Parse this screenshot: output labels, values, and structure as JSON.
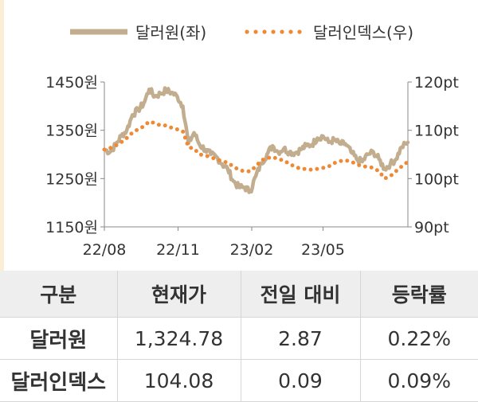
{
  "chart_data": {
    "type": "line",
    "x_ticks": [
      "22/08",
      "22/11",
      "23/02",
      "23/05"
    ],
    "y_left": {
      "ticks": [
        "1450원",
        "1350원",
        "1250원",
        "1150원"
      ],
      "range": [
        1150,
        1450
      ]
    },
    "y_right": {
      "ticks": [
        "120pt",
        "110pt",
        "100pt",
        "90pt"
      ],
      "range": [
        90,
        120
      ]
    },
    "x_range": [
      "2022-08-01",
      "2023-08-15"
    ],
    "series": [
      {
        "name": "달러원(좌)",
        "axis": "left",
        "color": "#c2ad8e",
        "style": "solid",
        "points": [
          [
            "2022-08-01",
            1310
          ],
          [
            "2022-08-08",
            1305
          ],
          [
            "2022-08-15",
            1320
          ],
          [
            "2022-08-22",
            1338
          ],
          [
            "2022-08-29",
            1350
          ],
          [
            "2022-09-05",
            1382
          ],
          [
            "2022-09-12",
            1392
          ],
          [
            "2022-09-19",
            1405
          ],
          [
            "2022-09-26",
            1435
          ],
          [
            "2022-10-03",
            1420
          ],
          [
            "2022-10-10",
            1426
          ],
          [
            "2022-10-17",
            1433
          ],
          [
            "2022-10-24",
            1428
          ],
          [
            "2022-10-31",
            1420
          ],
          [
            "2022-11-07",
            1400
          ],
          [
            "2022-11-14",
            1323
          ],
          [
            "2022-11-21",
            1345
          ],
          [
            "2022-11-28",
            1320
          ],
          [
            "2022-12-05",
            1310
          ],
          [
            "2022-12-12",
            1300
          ],
          [
            "2022-12-19",
            1295
          ],
          [
            "2022-12-26",
            1280
          ],
          [
            "2023-01-02",
            1270
          ],
          [
            "2023-01-09",
            1245
          ],
          [
            "2023-01-16",
            1232
          ],
          [
            "2023-01-23",
            1232
          ],
          [
            "2023-01-30",
            1223
          ],
          [
            "2023-02-06",
            1255
          ],
          [
            "2023-02-13",
            1282
          ],
          [
            "2023-02-20",
            1300
          ],
          [
            "2023-02-27",
            1318
          ],
          [
            "2023-03-06",
            1305
          ],
          [
            "2023-03-13",
            1312
          ],
          [
            "2023-03-20",
            1305
          ],
          [
            "2023-03-27",
            1303
          ],
          [
            "2023-04-03",
            1310
          ],
          [
            "2023-04-10",
            1318
          ],
          [
            "2023-04-17",
            1320
          ],
          [
            "2023-04-24",
            1334
          ],
          [
            "2023-05-01",
            1338
          ],
          [
            "2023-05-08",
            1325
          ],
          [
            "2023-05-15",
            1330
          ],
          [
            "2023-05-22",
            1322
          ],
          [
            "2023-05-29",
            1322
          ],
          [
            "2023-06-05",
            1305
          ],
          [
            "2023-06-12",
            1290
          ],
          [
            "2023-06-19",
            1285
          ],
          [
            "2023-06-26",
            1300
          ],
          [
            "2023-07-03",
            1305
          ],
          [
            "2023-07-10",
            1290
          ],
          [
            "2023-07-17",
            1270
          ],
          [
            "2023-07-24",
            1280
          ],
          [
            "2023-07-31",
            1290
          ],
          [
            "2023-08-07",
            1315
          ],
          [
            "2023-08-15",
            1325
          ]
        ]
      },
      {
        "name": "달러인덱스(우)",
        "axis": "right",
        "color": "#ee8a35",
        "style": "dotted",
        "points": [
          [
            "2022-08-01",
            106.0
          ],
          [
            "2022-08-08",
            106.3
          ],
          [
            "2022-08-15",
            106.8
          ],
          [
            "2022-08-22",
            107.5
          ],
          [
            "2022-08-29",
            108.4
          ],
          [
            "2022-09-05",
            109.5
          ],
          [
            "2022-09-12",
            110.2
          ],
          [
            "2022-09-19",
            110.8
          ],
          [
            "2022-09-26",
            111.8
          ],
          [
            "2022-10-03",
            111.5
          ],
          [
            "2022-10-10",
            111.0
          ],
          [
            "2022-10-17",
            111.0
          ],
          [
            "2022-10-24",
            110.5
          ],
          [
            "2022-10-31",
            110.2
          ],
          [
            "2022-11-07",
            109.8
          ],
          [
            "2022-11-14",
            106.5
          ],
          [
            "2022-11-21",
            106.2
          ],
          [
            "2022-11-28",
            105.0
          ],
          [
            "2022-12-05",
            104.8
          ],
          [
            "2022-12-12",
            104.4
          ],
          [
            "2022-12-19",
            104.0
          ],
          [
            "2022-12-26",
            103.6
          ],
          [
            "2023-01-02",
            103.3
          ],
          [
            "2023-01-09",
            102.5
          ],
          [
            "2023-01-16",
            101.8
          ],
          [
            "2023-01-23",
            101.5
          ],
          [
            "2023-01-30",
            101.5
          ],
          [
            "2023-02-06",
            102.5
          ],
          [
            "2023-02-13",
            103.8
          ],
          [
            "2023-02-20",
            104.2
          ],
          [
            "2023-02-27",
            104.5
          ],
          [
            "2023-03-06",
            104.0
          ],
          [
            "2023-03-13",
            103.8
          ],
          [
            "2023-03-20",
            103.0
          ],
          [
            "2023-03-27",
            102.5
          ],
          [
            "2023-04-03",
            102.0
          ],
          [
            "2023-04-10",
            102.0
          ],
          [
            "2023-04-17",
            101.8
          ],
          [
            "2023-04-24",
            102.0
          ],
          [
            "2023-05-01",
            102.2
          ],
          [
            "2023-05-08",
            102.5
          ],
          [
            "2023-05-15",
            103.2
          ],
          [
            "2023-05-22",
            103.6
          ],
          [
            "2023-05-29",
            103.8
          ],
          [
            "2023-06-05",
            103.5
          ],
          [
            "2023-06-12",
            103.0
          ],
          [
            "2023-06-19",
            102.5
          ],
          [
            "2023-06-26",
            102.5
          ],
          [
            "2023-07-03",
            102.2
          ],
          [
            "2023-07-10",
            101.5
          ],
          [
            "2023-07-17",
            100.0
          ],
          [
            "2023-07-24",
            100.5
          ],
          [
            "2023-07-31",
            101.5
          ],
          [
            "2023-08-07",
            102.5
          ],
          [
            "2023-08-15",
            103.5
          ]
        ]
      }
    ],
    "legend_position": "top",
    "grid": false
  },
  "table": {
    "headers": [
      "구분",
      "현재가",
      "전일 대비",
      "등락률"
    ],
    "rows": [
      [
        "달러원",
        "1,324.78",
        "2.87",
        "0.22%"
      ],
      [
        "달러인덱스",
        "104.08",
        "0.09",
        "0.09%"
      ]
    ]
  }
}
